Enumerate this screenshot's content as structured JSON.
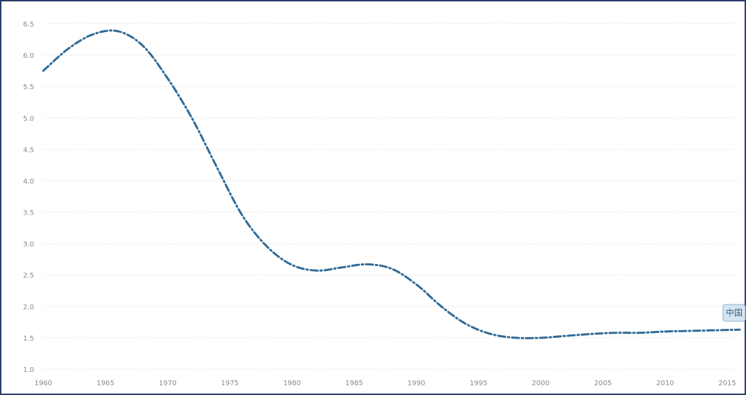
{
  "chart_data": {
    "type": "line",
    "title": "",
    "xlabel": "",
    "ylabel": "",
    "xlim": [
      1960,
      2016
    ],
    "ylim": [
      1.0,
      6.5
    ],
    "grid": true,
    "x_ticks": [
      "1960",
      "1965",
      "1970",
      "1975",
      "1980",
      "1985",
      "1990",
      "1995",
      "2000",
      "2005",
      "2010",
      "2015"
    ],
    "y_ticks": [
      "1.0",
      "1.5",
      "2.0",
      "2.5",
      "3.0",
      "3.5",
      "4.0",
      "4.5",
      "5.0",
      "5.5",
      "6.0",
      "6.5"
    ],
    "series": [
      {
        "name": "中国",
        "color": "#2e6a98",
        "x": [
          1960,
          1962,
          1964,
          1966,
          1968,
          1970,
          1972,
          1974,
          1976,
          1978,
          1980,
          1982,
          1984,
          1986,
          1988,
          1990,
          1992,
          1994,
          1996,
          1998,
          2000,
          2002,
          2004,
          2006,
          2008,
          2010,
          2012,
          2014,
          2016
        ],
        "y": [
          5.75,
          6.1,
          6.33,
          6.38,
          6.15,
          5.63,
          4.98,
          4.2,
          3.45,
          2.95,
          2.66,
          2.57,
          2.62,
          2.67,
          2.6,
          2.35,
          2.0,
          1.72,
          1.56,
          1.5,
          1.5,
          1.53,
          1.56,
          1.58,
          1.58,
          1.6,
          1.61,
          1.62,
          1.63
        ]
      }
    ]
  }
}
